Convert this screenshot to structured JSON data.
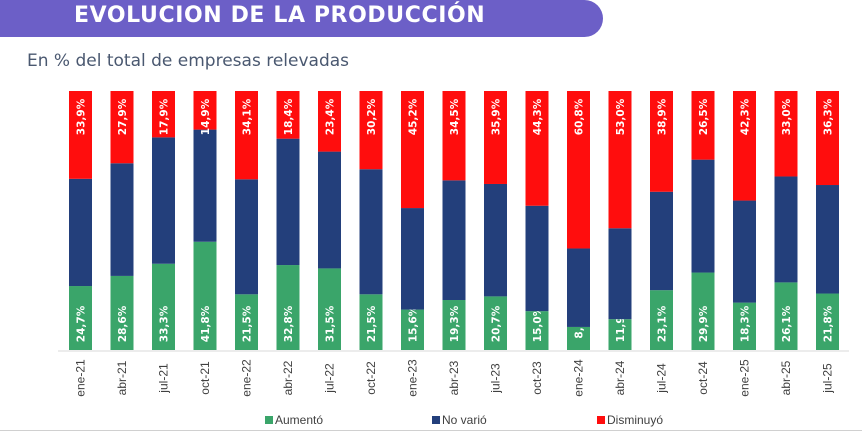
{
  "header": {
    "title": "EVOLUCION DE LA PRODUCCIÓN",
    "subtitle": "En % del total de empresas relevadas",
    "banner_color": "#6c5fc7"
  },
  "chart_data": {
    "type": "bar",
    "stacked": true,
    "orientation": "vertical",
    "title": "EVOLUCION DE LA PRODUCCIÓN",
    "subtitle": "En % del total de empresas relevadas",
    "xlabel": "",
    "ylabel": "",
    "ylim": [
      0,
      100
    ],
    "grid": false,
    "legend_position": "bottom",
    "categories": [
      "ene-21",
      "abr-21",
      "jul-21",
      "oct-21",
      "ene-22",
      "abr-22",
      "jul-22",
      "oct-22",
      "ene-23",
      "abr-23",
      "jul-23",
      "oct-23",
      "ene-24",
      "abr-24",
      "jul-24",
      "oct-24",
      "ene-25",
      "abr-25",
      "jul-25"
    ],
    "series": [
      {
        "name": "Aumentó",
        "color": "#3aa56a",
        "values": [
          24.7,
          28.6,
          33.3,
          41.8,
          21.5,
          32.8,
          31.5,
          21.5,
          15.6,
          19.3,
          20.7,
          15.0,
          8.9,
          11.9,
          23.1,
          29.9,
          18.3,
          26.1,
          21.8
        ],
        "labels": [
          "24,7%",
          "28,6%",
          "33,3%",
          "41,8%",
          "21,5%",
          "32,8%",
          "31,5%",
          "21,5%",
          "15,6%",
          "19,3%",
          "20,7%",
          "15,0%",
          "8,9%",
          "11,9%",
          "23,1%",
          "29,9%",
          "18,3%",
          "26,1%",
          "21,8%"
        ]
      },
      {
        "name": "No varió",
        "color": "#233f7b",
        "values": [
          41.4,
          43.5,
          48.8,
          43.3,
          44.4,
          48.8,
          45.1,
          48.3,
          39.2,
          46.2,
          43.4,
          40.7,
          30.3,
          35.1,
          38.0,
          43.6,
          39.4,
          40.9,
          41.9
        ],
        "labels": []
      },
      {
        "name": "Disminuyó",
        "color": "#ff0d0d",
        "values": [
          33.9,
          27.9,
          17.9,
          14.9,
          34.1,
          18.4,
          23.4,
          30.2,
          45.2,
          34.5,
          35.9,
          44.3,
          60.8,
          53.0,
          38.9,
          26.5,
          42.3,
          33.0,
          36.3
        ],
        "labels": [
          "33,9%",
          "27,9%",
          "17,9%",
          "14,9%",
          "34,1%",
          "18,4%",
          "23,4%",
          "30,2%",
          "45,2%",
          "34,5%",
          "35,9%",
          "44,3%",
          "60,8%",
          "53,0%",
          "38,9%",
          "26,5%",
          "42,3%",
          "33,0%",
          "36,3%"
        ]
      }
    ]
  }
}
